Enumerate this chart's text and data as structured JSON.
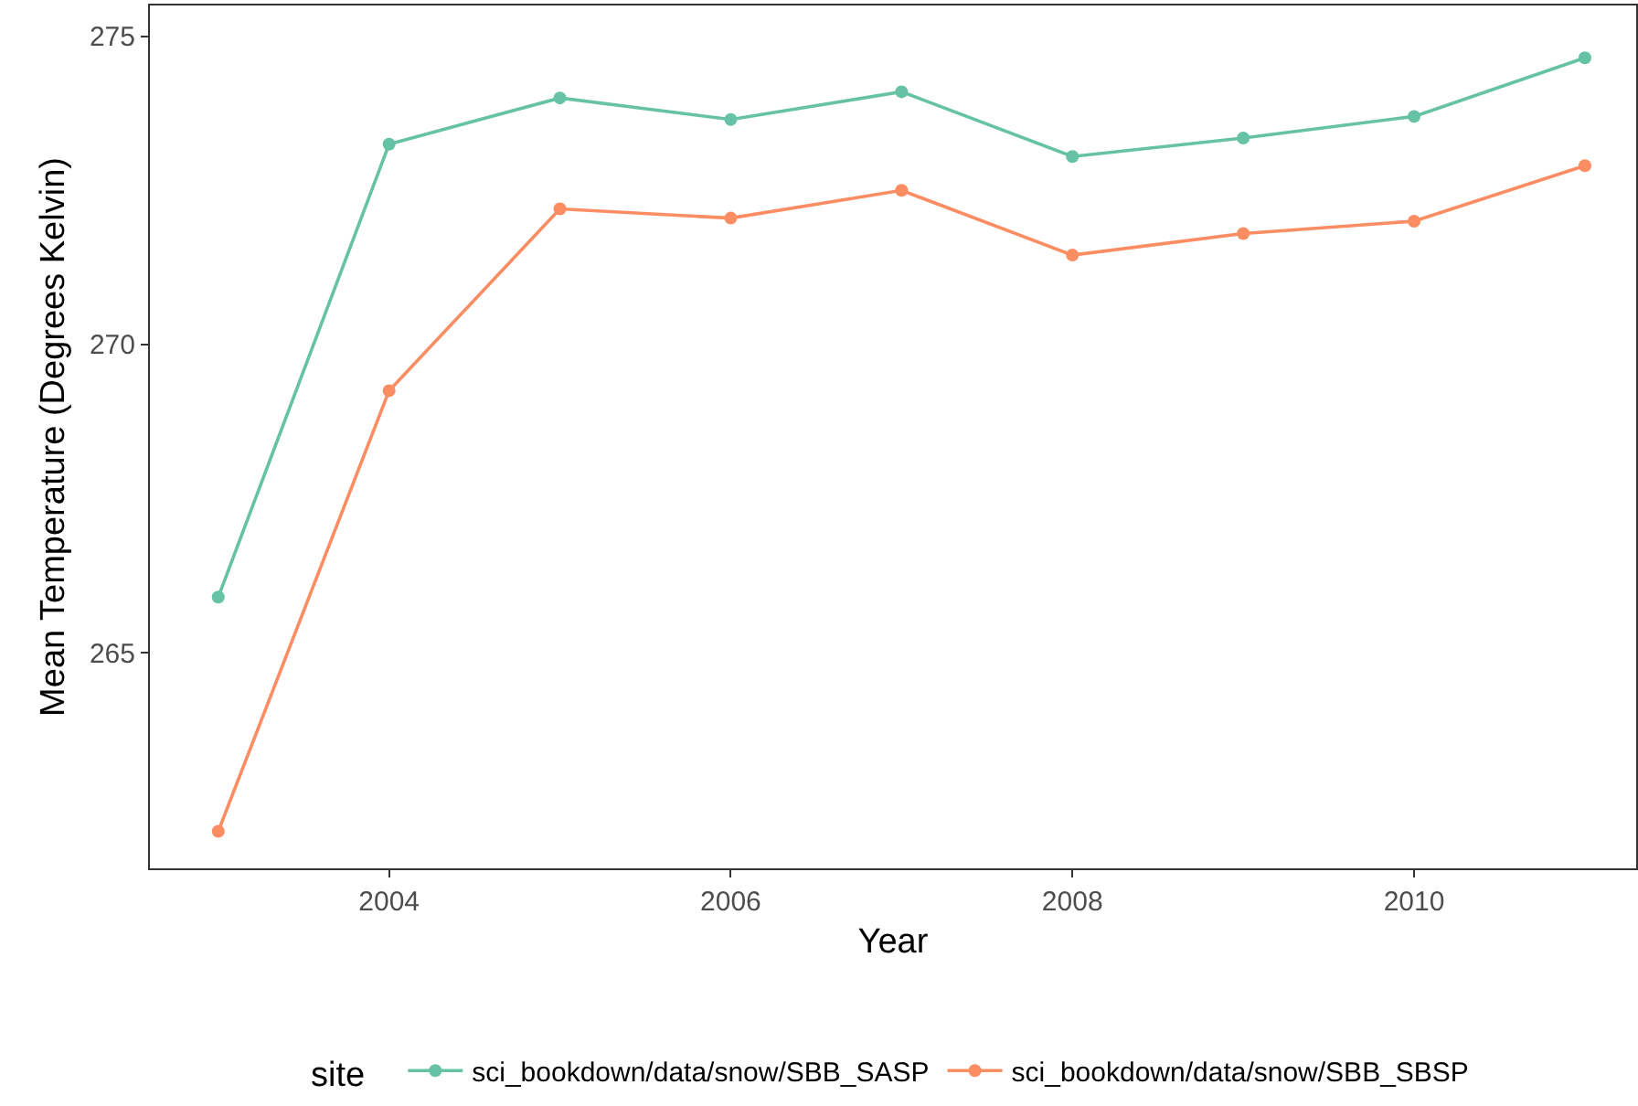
{
  "chart_data": {
    "type": "line",
    "xlabel": "Year",
    "ylabel": "Mean Temperature (Degrees Kelvin)",
    "legend_title": "site",
    "legend": "bottom",
    "grid": false,
    "marker": "circle",
    "line_style": "solid",
    "x": [
      2003,
      2004,
      2005,
      2006,
      2007,
      2008,
      2009,
      2010,
      2011
    ],
    "xlim": [
      2002.6,
      2011.3
    ],
    "xticks": [
      2004,
      2006,
      2008,
      2010
    ],
    "ylim": [
      261.5,
      275.5
    ],
    "yticks": [
      265,
      270,
      275
    ],
    "series": [
      {
        "name": "sci_bookdown/data/snow/SBB_SASP",
        "color": "#66c2a5",
        "values": [
          265.9,
          273.25,
          274.0,
          273.65,
          274.1,
          273.05,
          273.35,
          273.7,
          274.65
        ]
      },
      {
        "name": "sci_bookdown/data/snow/SBB_SBSP",
        "color": "#fc8d62",
        "values": [
          262.1,
          269.25,
          272.2,
          272.05,
          272.5,
          271.45,
          271.8,
          272.0,
          272.9
        ]
      }
    ]
  }
}
